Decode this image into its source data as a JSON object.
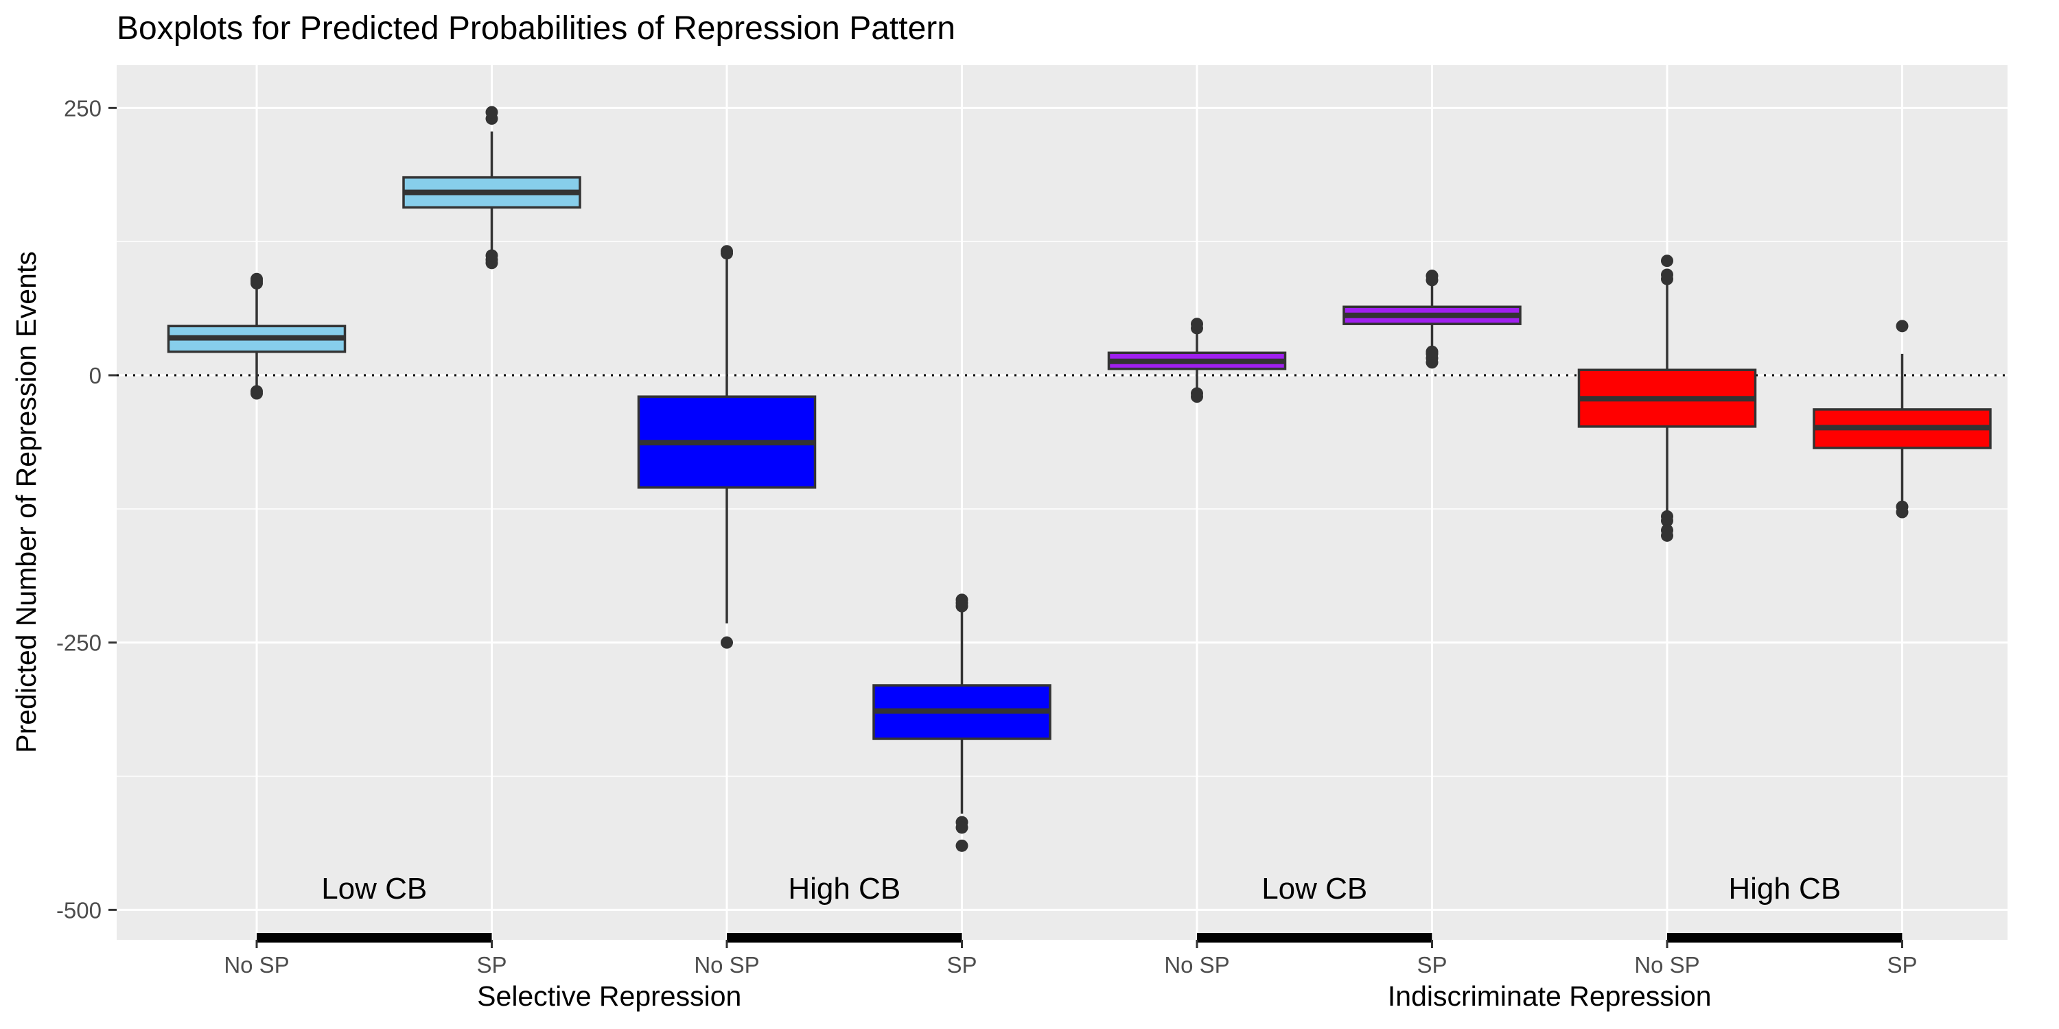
{
  "chart_data": {
    "type": "box",
    "title": "Boxplots for Predicted Probabilities of Repression Pattern",
    "ylabel": "Predicted Number of Repression Events",
    "ylim": [
      -528,
      290
    ],
    "yticks": [
      250,
      0,
      -250,
      -500
    ],
    "ytick_labels": [
      "250",
      "0",
      "-250",
      "-500"
    ],
    "reference_line": {
      "y": 0,
      "style": "dotted"
    },
    "grid": true,
    "background": "#ebebeb",
    "categories": [
      "No SP",
      "SP",
      "No SP",
      "SP",
      "No SP",
      "SP",
      "No SP",
      "SP"
    ],
    "groups": [
      {
        "label": "Selective Repression",
        "category_range": [
          0,
          3
        ]
      },
      {
        "label": "Indiscriminate Repression",
        "category_range": [
          4,
          7
        ]
      }
    ],
    "annotations": [
      {
        "text": "Low CB",
        "category_range": [
          0,
          1
        ]
      },
      {
        "text": "High CB",
        "category_range": [
          2,
          3
        ]
      },
      {
        "text": "Low CB",
        "category_range": [
          4,
          5
        ]
      },
      {
        "text": "High CB",
        "category_range": [
          6,
          7
        ]
      }
    ],
    "boxes": [
      {
        "category": "No SP",
        "color": "#87ceeb",
        "q1": 22,
        "median": 35,
        "q3": 46,
        "whisker_low": -12,
        "whisker_high": 85,
        "outliers": [
          -15,
          -17,
          86,
          88,
          90
        ]
      },
      {
        "category": "SP",
        "color": "#87ceeb",
        "q1": 157,
        "median": 171,
        "q3": 185,
        "whisker_low": 112,
        "whisker_high": 228,
        "outliers": [
          105,
          108,
          112,
          240,
          246
        ]
      },
      {
        "category": "No SP",
        "color": "#0000ff",
        "q1": -105,
        "median": -63,
        "q3": -20,
        "whisker_low": -232,
        "whisker_high": 110,
        "outliers": [
          -250,
          114,
          116
        ]
      },
      {
        "category": "SP",
        "color": "#0000ff",
        "q1": -340,
        "median": -314,
        "q3": -290,
        "whisker_low": -410,
        "whisker_high": -218,
        "outliers": [
          -210,
          -213,
          -216,
          -418,
          -423,
          -440
        ]
      },
      {
        "category": "No SP",
        "color": "#a020f0",
        "q1": 6,
        "median": 13,
        "q3": 21,
        "whisker_low": -13,
        "whisker_high": 40,
        "outliers": [
          -17,
          -20,
          44,
          48
        ]
      },
      {
        "category": "SP",
        "color": "#a020f0",
        "q1": 48,
        "median": 56,
        "q3": 64,
        "whisker_low": 24,
        "whisker_high": 86,
        "outliers": [
          12,
          16,
          20,
          22,
          89,
          93
        ]
      },
      {
        "category": "No SP",
        "color": "#ff0000",
        "q1": -48,
        "median": -22,
        "q3": 5,
        "whisker_low": -128,
        "whisker_high": 88,
        "outliers": [
          -132,
          -136,
          -145,
          -150,
          90,
          94,
          107
        ]
      },
      {
        "category": "SP",
        "color": "#ff0000",
        "q1": -68,
        "median": -49,
        "q3": -32,
        "whisker_low": -120,
        "whisker_high": 20,
        "outliers": [
          -123,
          -128,
          46
        ]
      }
    ]
  }
}
